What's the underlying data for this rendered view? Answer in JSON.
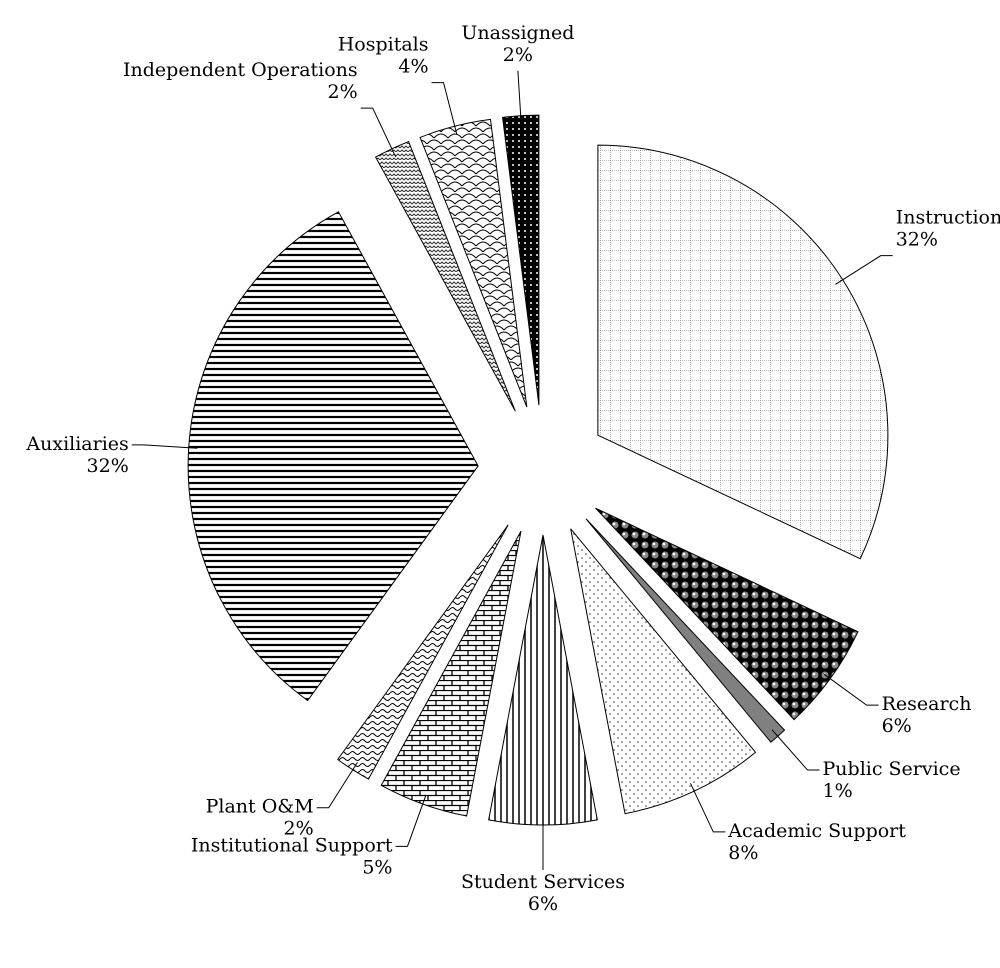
{
  "chart_data": {
    "type": "pie",
    "categories": [
      "Instruction",
      "Research",
      "Public Service",
      "Academic Support",
      "Student Services",
      "Institutional Support",
      "Plant O&M",
      "Auxiliaries",
      "Independent Operations",
      "Hospitals",
      "Unassigned"
    ],
    "values": [
      32,
      6,
      1,
      8,
      6,
      5,
      2,
      32,
      2,
      4,
      2
    ],
    "value_labels": [
      "32%",
      "6%",
      "1%",
      "8%",
      "6%",
      "5%",
      "2%",
      "32%",
      "2%",
      "4%",
      "2%"
    ]
  }
}
